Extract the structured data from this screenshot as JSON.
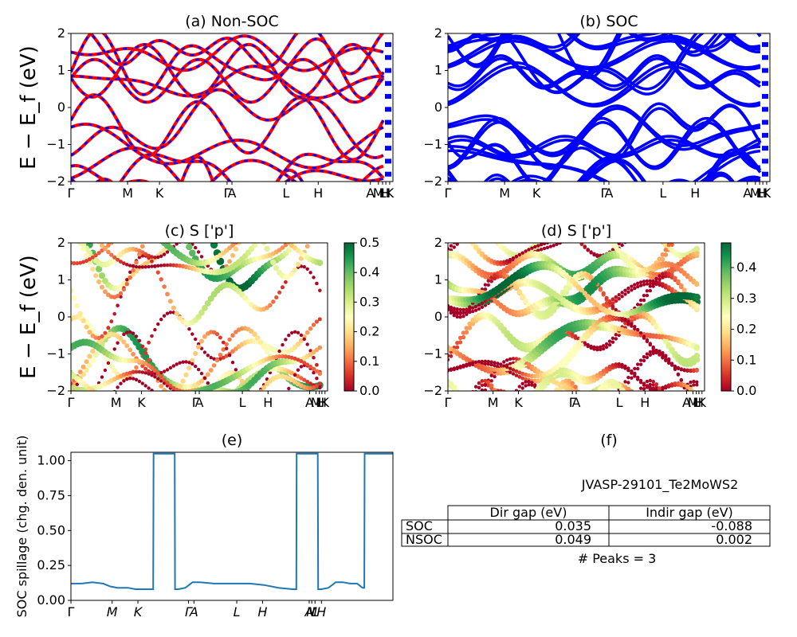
{
  "chart_data": [
    {
      "id": "a",
      "type": "line",
      "title": "(a) Non-SOC",
      "ylabel": "E − E_f (eV)",
      "ylim": [
        -2,
        2
      ],
      "yticks": [
        "2",
        "1",
        "0",
        "−1",
        "−2"
      ],
      "xtick_labels": [
        "Γ",
        "M",
        "K",
        "Γ",
        "A",
        "L",
        "H",
        "A",
        "M",
        "L",
        "H",
        "K"
      ],
      "series": [
        {
          "color": "#ff0000",
          "values": []
        },
        {
          "color": "#0000ff",
          "values": []
        }
      ]
    },
    {
      "id": "b",
      "type": "line",
      "title": "(b) SOC",
      "ylim": [
        -2,
        2
      ],
      "yticks": [
        "2",
        "1",
        "0",
        "−1",
        "−2"
      ],
      "xtick_labels": [
        "Γ",
        "M",
        "K",
        "Γ",
        "A",
        "L",
        "H",
        "A",
        "M",
        "L",
        "H",
        "K"
      ],
      "series": [
        {
          "color": "#0000ff",
          "values": []
        }
      ]
    },
    {
      "id": "c",
      "type": "scatter",
      "title": "(c)  S ['p']",
      "ylabel": "E − E_f (eV)",
      "ylim": [
        -2,
        2
      ],
      "yticks": [
        "2",
        "1",
        "0",
        "−1",
        "−2"
      ],
      "xtick_labels": [
        "Γ",
        "M",
        "K",
        "Γ",
        "A",
        "L",
        "H",
        "A",
        "M",
        "L",
        "H",
        "K"
      ],
      "colorbar": {
        "colormap": "RdYlGn",
        "range": [
          0.0,
          0.5
        ],
        "ticks": [
          "0.5",
          "0.4",
          "0.3",
          "0.2",
          "0.1",
          "0.0"
        ]
      }
    },
    {
      "id": "d",
      "type": "scatter",
      "title": "(d) S ['p']",
      "ylim": [
        -2,
        2
      ],
      "yticks": [
        "2",
        "1",
        "0",
        "−1",
        "−2"
      ],
      "xtick_labels": [
        "Γ",
        "M",
        "K",
        "Γ",
        "A",
        "L",
        "H",
        "A",
        "M",
        "L",
        "H",
        "K"
      ],
      "colorbar": {
        "colormap": "RdYlGn",
        "range": [
          0.0,
          0.48
        ],
        "ticks": [
          "0.4",
          "0.3",
          "0.2",
          "0.1",
          "0.0"
        ]
      }
    },
    {
      "id": "e",
      "type": "line",
      "title": "(e)",
      "ylabel": "SOC spillage (chg. den. unit)",
      "ylim": [
        0,
        1.06
      ],
      "yticks": [
        "1.00",
        "0.75",
        "0.50",
        "0.25",
        "0.00"
      ],
      "xtick_labels": [
        "Γ",
        "M",
        "K",
        "Γ",
        "A",
        "L",
        "H",
        "A",
        "M",
        "L",
        "H"
      ],
      "color": "#1f77b4",
      "x": [
        0,
        0.3,
        0.6,
        0.9,
        1.1,
        1.3,
        1.6,
        1.8,
        2.0,
        2.2,
        2.3,
        2.31,
        2.9,
        2.91,
        3.0,
        3.2,
        3.4,
        3.6,
        4.0,
        4.6,
        5.0,
        5.4,
        5.8,
        6.2,
        6.3,
        6.31,
        6.9,
        6.91,
        7.0,
        7.2,
        7.4,
        7.6,
        7.8,
        8.0,
        8.15,
        8.2,
        8.21,
        9.0
      ],
      "y": [
        0.12,
        0.12,
        0.13,
        0.12,
        0.1,
        0.09,
        0.09,
        0.08,
        0.08,
        0.08,
        0.08,
        1.05,
        1.05,
        0.08,
        0.08,
        0.09,
        0.13,
        0.13,
        0.12,
        0.12,
        0.12,
        0.11,
        0.09,
        0.08,
        0.08,
        1.05,
        1.05,
        0.08,
        0.08,
        0.09,
        0.13,
        0.13,
        0.12,
        0.12,
        0.09,
        0.09,
        1.05,
        1.05
      ]
    }
  ],
  "panel_f": {
    "title": "(f)",
    "material_label": "JVASP-29101_Te2MoWS2",
    "table": {
      "headers": [
        "Dir gap (eV)",
        "Indir gap (eV)"
      ],
      "rows": [
        {
          "label": "SOC",
          "dir": "0.035",
          "indir": "-0.088"
        },
        {
          "label": "NSOC",
          "dir": "0.049",
          "indir": "0.002"
        }
      ]
    },
    "peaks_label": "# Peaks = 3"
  }
}
